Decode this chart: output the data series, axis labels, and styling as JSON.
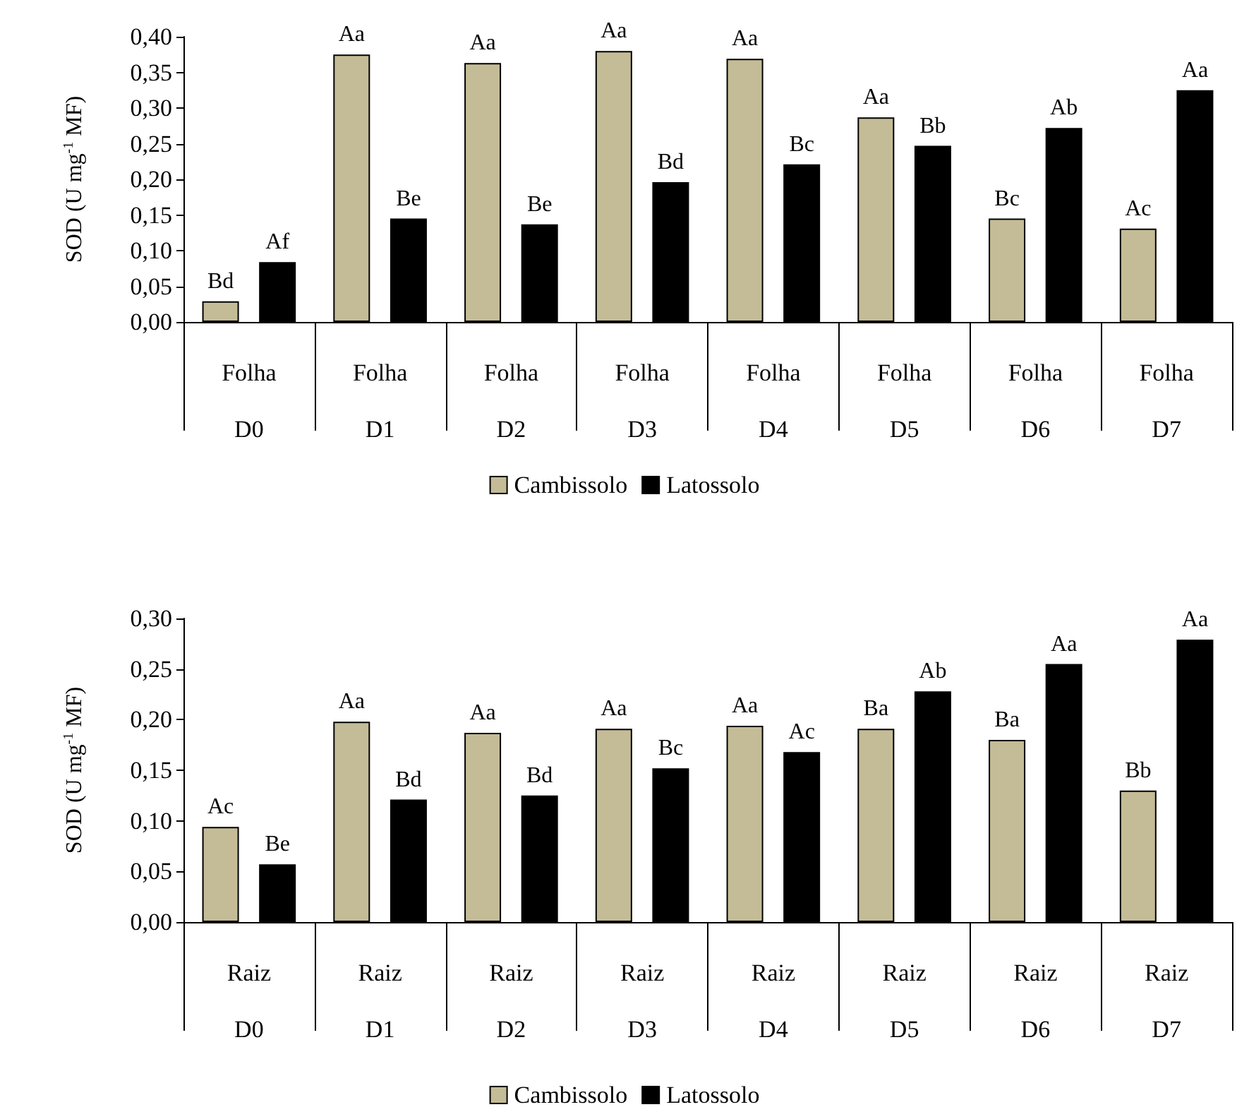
{
  "chart_data": [
    {
      "type": "bar",
      "ylabel": "SOD (U mg$^{-1}$ MF)",
      "categories": [
        "Folha\nD0",
        "Folha\nD1",
        "Folha\nD2",
        "Folha\nD3",
        "Folha\nD4",
        "Folha\nD5",
        "Folha\nD6",
        "Folha\nD7"
      ],
      "series": [
        {
          "name": "Cambissolo",
          "color": "#c4bc96",
          "values": [
            0.029,
            0.375,
            0.363,
            0.38,
            0.369,
            0.287,
            0.145,
            0.131
          ],
          "value_labels": [
            "Bd",
            "Aa",
            "Aa",
            "Aa",
            "Aa",
            "Aa",
            "Bc",
            "Ac"
          ]
        },
        {
          "name": "Latossolo",
          "color": "#000000",
          "values": [
            0.084,
            0.145,
            0.137,
            0.196,
            0.221,
            0.247,
            0.272,
            0.325
          ],
          "value_labels": [
            "Af",
            "Be",
            "Be",
            "Bd",
            "Bc",
            "Bb",
            "Ab",
            "Aa"
          ]
        }
      ],
      "ylim": [
        0,
        0.4
      ],
      "yticks": [
        {
          "value": 0,
          "label": "0,00"
        },
        {
          "value": 0.05,
          "label": "0,05"
        },
        {
          "value": 0.1,
          "label": "0,10"
        },
        {
          "value": 0.15,
          "label": "0,15"
        },
        {
          "value": 0.2,
          "label": "0,20"
        },
        {
          "value": 0.25,
          "label": "0,25"
        },
        {
          "value": 0.3,
          "label": "0,30"
        },
        {
          "value": 0.35,
          "label": "0,35"
        },
        {
          "value": 0.4,
          "label": "0,40"
        }
      ],
      "grid": false,
      "legend": "bottom"
    },
    {
      "type": "bar",
      "ylabel": "SOD (U mg$^{-1}$ MF)",
      "categories": [
        "Raiz\nD0",
        "Raiz\nD1",
        "Raiz\nD2",
        "Raiz\nD3",
        "Raiz\nD4",
        "Raiz\nD5",
        "Raiz\nD6",
        "Raiz\nD7"
      ],
      "series": [
        {
          "name": "Cambissolo",
          "color": "#c4bc96",
          "values": [
            0.094,
            0.198,
            0.187,
            0.191,
            0.194,
            0.191,
            0.18,
            0.13
          ],
          "value_labels": [
            "Ac",
            "Aa",
            "Aa",
            "Aa",
            "Aa",
            "Ba",
            "Ba",
            "Bb"
          ]
        },
        {
          "name": "Latossolo",
          "color": "#000000",
          "values": [
            0.057,
            0.121,
            0.125,
            0.152,
            0.168,
            0.228,
            0.255,
            0.279
          ],
          "value_labels": [
            "Be",
            "Bd",
            "Bd",
            "Bc",
            "Ac",
            "Ab",
            "Aa",
            "Aa"
          ]
        }
      ],
      "ylim": [
        0,
        0.3
      ],
      "yticks": [
        {
          "value": 0,
          "label": "0,00"
        },
        {
          "value": 0.05,
          "label": "0,05"
        },
        {
          "value": 0.1,
          "label": "0,10"
        },
        {
          "value": 0.15,
          "label": "0,15"
        },
        {
          "value": 0.2,
          "label": "0,20"
        },
        {
          "value": 0.25,
          "label": "0,25"
        },
        {
          "value": 0.3,
          "label": "0,30"
        }
      ],
      "grid": false,
      "legend": "bottom"
    }
  ]
}
